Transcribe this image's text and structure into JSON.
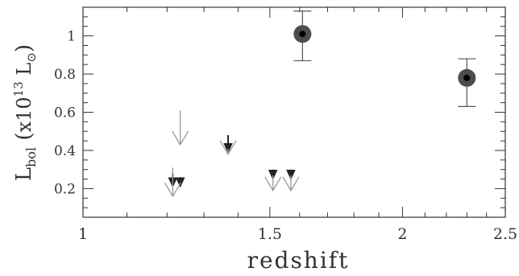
{
  "chart_data": {
    "type": "scatter",
    "title": "",
    "xlabel": "redshift",
    "ylabel": {
      "base": "L",
      "sub": "bol",
      "paren_prefix": "(",
      "paren_mid": "x10",
      "paren_sup": "13",
      "paren_suffix": " L",
      "paren_sun_sub": "⊙",
      "paren_close": ")"
    },
    "x_scale": "log",
    "xlim": [
      1.0,
      2.5
    ],
    "ylim": [
      0.05,
      1.15
    ],
    "x_ticks": [
      {
        "value": 1,
        "label": "1"
      },
      {
        "value": 1.5,
        "label": "1.5"
      },
      {
        "value": 2,
        "label": "2"
      },
      {
        "value": 2.5,
        "label": "2.5"
      }
    ],
    "y_ticks": [
      {
        "value": 0.2,
        "label": "0.2"
      },
      {
        "value": 0.4,
        "label": "0.4"
      },
      {
        "value": 0.6,
        "label": "0.6"
      },
      {
        "value": 0.8,
        "label": "0.8"
      },
      {
        "value": 1.0,
        "label": "1"
      }
    ],
    "detections": [
      {
        "x": 1.61,
        "y": 1.01,
        "y_err_low": 0.87,
        "y_err_high": 1.13
      },
      {
        "x": 2.3,
        "y": 0.78,
        "y_err_low": 0.63,
        "y_err_high": 0.88
      }
    ],
    "upper_limits": [
      {
        "style": "gray",
        "x": 1.235,
        "y_top": 0.61,
        "y_tip": 0.43
      },
      {
        "style": "dark",
        "x": 1.37,
        "y_top": 0.48,
        "y_tip": 0.39
      },
      {
        "style": "gray",
        "x": 1.37,
        "y_top": 0.41,
        "y_tip": 0.38
      },
      {
        "style": "dark",
        "x": 1.215,
        "y_top": 0.28,
        "y_tip": 0.21
      },
      {
        "style": "dark",
        "x": 1.235,
        "y_top": 0.26,
        "y_tip": 0.21
      },
      {
        "style": "gray",
        "x": 1.215,
        "y_top": 0.31,
        "y_tip": 0.16
      },
      {
        "style": "dark",
        "x": 1.51,
        "y_top": 0.3,
        "y_tip": 0.25
      },
      {
        "style": "gray",
        "x": 1.51,
        "y_top": 0.27,
        "y_tip": 0.19
      },
      {
        "style": "dark",
        "x": 1.57,
        "y_top": 0.3,
        "y_tip": 0.25
      },
      {
        "style": "gray",
        "x": 1.57,
        "y_top": 0.27,
        "y_tip": 0.19
      }
    ],
    "colors": {
      "frame": "#333333",
      "text": "#333333",
      "point_outer": "#4d4d4d",
      "point_inner": "#000000",
      "errorbar": "#555555",
      "arrow_dark": "#222222",
      "arrow_gray": "#999999"
    },
    "grid": false,
    "legend": "none"
  }
}
